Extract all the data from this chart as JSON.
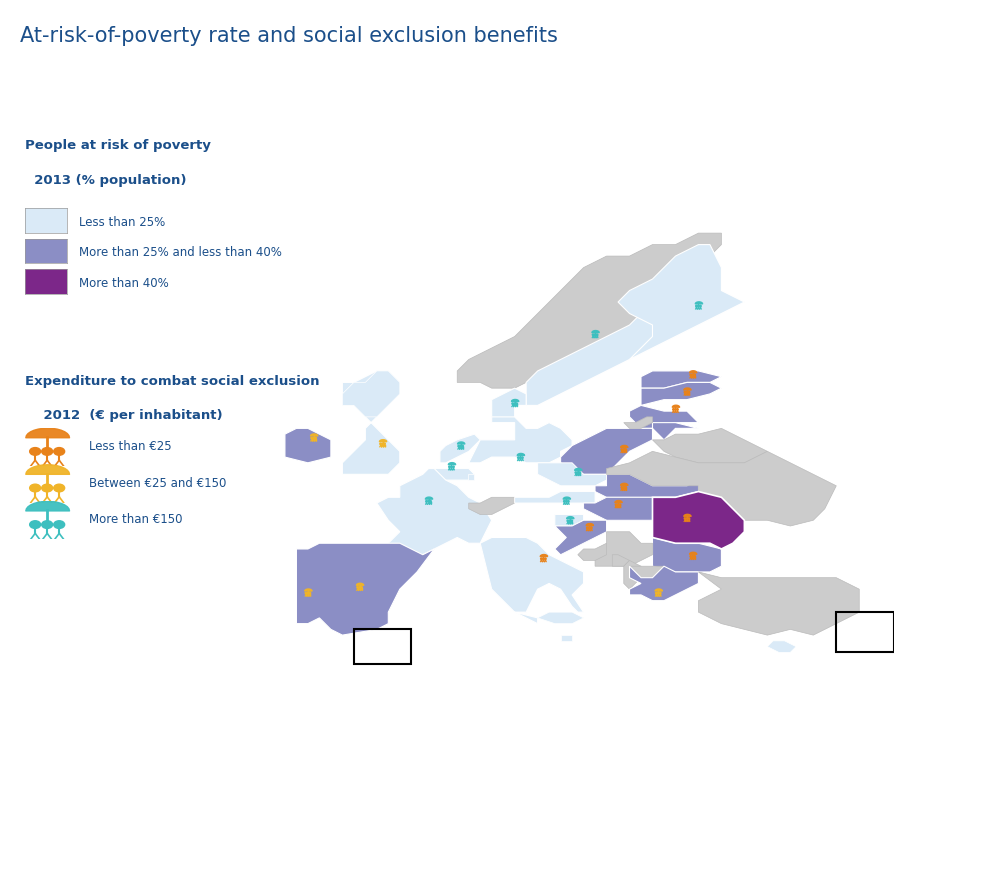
{
  "title": "At-risk-of-poverty rate and social exclusion benefits",
  "title_color": "#1b4f8a",
  "title_fontsize": 15,
  "legend1_title_l1": "People at risk of poverty",
  "legend1_title_l2": "  2013 (% population)",
  "legend1_items": [
    "Less than 25%",
    "More than 25% and less than 40%",
    "More than 40%"
  ],
  "legend1_colors": [
    "#daeaf7",
    "#8b8ec5",
    "#7c2789"
  ],
  "legend2_title_l1": "Expenditure to combat social exclusion",
  "legend2_title_l2": "    2012  (€ per inhabitant)",
  "legend2_items": [
    "Less than €25",
    "Between €25 and €150",
    "More than €150"
  ],
  "legend2_icon_colors": [
    "#e8821a",
    "#f0b429",
    "#3dbfbf"
  ],
  "bg": "#ffffff",
  "non_eu": "#cccccc",
  "c_low": "#daeaf7",
  "c_mid": "#8b8ec5",
  "c_high": "#7c2789",
  "border_color": "#ffffff",
  "non_eu_border": "#bbbbbb",
  "text_color": "#1b4f8a",
  "icon_orange": "#e8821a",
  "icon_yellow": "#f0b429",
  "icon_teal": "#3dbfbf"
}
